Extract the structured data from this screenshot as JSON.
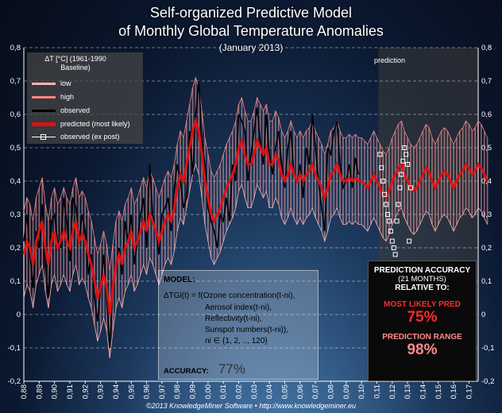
{
  "header": {
    "title_line1": "Self-organized Predictive Model",
    "title_line2": "of Monthly Global Temperature Anomalies",
    "subtitle": "(January 2013)"
  },
  "legend": {
    "heading": "ΔT [°C] (1961-1990 Baseline)",
    "items": [
      {
        "key": "low",
        "label": "low",
        "color": "#ffb3b3"
      },
      {
        "key": "high",
        "label": "high",
        "color": "#ff8585"
      },
      {
        "key": "observed",
        "label": "observed",
        "color": "#000000"
      },
      {
        "key": "predicted",
        "label": "predicted (most likely)",
        "color": "#e01010"
      },
      {
        "key": "expost",
        "label": "observed (ex post)",
        "color": "#ffffff"
      }
    ]
  },
  "prediction_region_label": "prediction",
  "model_box": {
    "heading": "MODEL:",
    "lines": [
      "ΔTGl(t) = f(Ozone concentration(t-ni),",
      "Aerosol index(t-ni),",
      "Reflectivity(t-ni),",
      "Sunspot numbers(t-ni)),",
      "ni ∈ {1, 2, .., 120}"
    ],
    "accuracy_label": "ACCURACY:",
    "accuracy_value": "77%"
  },
  "accuracy_box": {
    "title": "PREDICTION ACCURACY",
    "subtitle": "(21 MONTHS)",
    "relative": "RELATIVE TO:",
    "most_likely_label": "MOST LIKELY PRED",
    "most_likely_value": "75%",
    "range_label": "PREDICTION RANGE",
    "range_value": "98%"
  },
  "footer": "©2013 KnowledgeMiner Software  •  http://www.knowledgeminer.eu",
  "chart_data": {
    "type": "line",
    "ylim": [
      -0.2,
      0.8
    ],
    "yticks": [
      "-0,2",
      "-0,1",
      "0",
      "0,1",
      "0,2",
      "0,3",
      "0,4",
      "0,5",
      "0,6",
      "0,7",
      "0,8"
    ],
    "xlim": [
      1988,
      2017.6
    ],
    "xticks": [
      "0,88",
      "0,89",
      "0,90",
      "0,91",
      "0,92",
      "0,93",
      "0,94",
      "0,95",
      "0,96",
      "0,97",
      "0,98",
      "0,99",
      "0,00",
      "0,01",
      "0,02",
      "0,03",
      "0,04",
      "0,05",
      "0,06",
      "0,07",
      "0,08",
      "0,09",
      "0,10",
      "0,11",
      "0,12",
      "0,13",
      "0,14",
      "0,15",
      "0,16",
      "0,17"
    ],
    "prediction_start": 2011.1,
    "grid": true,
    "observed": {
      "x0": 1988.0,
      "step": 0.2,
      "values": [
        0.22,
        0.3,
        0.18,
        0.08,
        0.25,
        0.2,
        0.33,
        0.15,
        0.05,
        0.28,
        0.3,
        0.22,
        0.2,
        0.35,
        0.28,
        0.16,
        0.35,
        0.32,
        0.22,
        0.3,
        0.25,
        0.12,
        0.18,
        0.05,
        -0.02,
        0.08,
        0.18,
        0.05,
        -0.1,
        0.08,
        0.15,
        0.2,
        0.12,
        0.28,
        0.22,
        0.3,
        0.15,
        0.22,
        0.3,
        0.35,
        0.2,
        0.45,
        0.3,
        0.25,
        0.18,
        0.3,
        0.32,
        0.35,
        0.25,
        0.38,
        0.45,
        0.4,
        0.32,
        0.35,
        0.55,
        0.42,
        0.6,
        0.7,
        0.52,
        0.45,
        0.32,
        0.28,
        0.25,
        0.2,
        0.3,
        0.28,
        0.35,
        0.28,
        0.45,
        0.4,
        0.6,
        0.58,
        0.55,
        0.4,
        0.48,
        0.55,
        0.62,
        0.52,
        0.45,
        0.6,
        0.48,
        0.42,
        0.5,
        0.55,
        0.45,
        0.38,
        0.5,
        0.55,
        0.42,
        0.4,
        0.45,
        0.35,
        0.5,
        0.45,
        0.6,
        0.5,
        0.4,
        0.32,
        0.25,
        0.5,
        0.48,
        0.55,
        0.58,
        0.45,
        0.38,
        0.4,
        0.45,
        0.38,
        0.47,
        0.42
      ]
    },
    "predicted": {
      "x0": 1988.0,
      "step": 0.2,
      "values": [
        0.18,
        0.22,
        0.2,
        0.15,
        0.22,
        0.25,
        0.28,
        0.2,
        0.15,
        0.22,
        0.25,
        0.2,
        0.22,
        0.25,
        0.22,
        0.2,
        0.25,
        0.28,
        0.22,
        0.24,
        0.22,
        0.18,
        0.15,
        0.1,
        0.05,
        0.08,
        0.12,
        0.08,
        0.0,
        0.08,
        0.15,
        0.18,
        0.15,
        0.2,
        0.22,
        0.25,
        0.2,
        0.22,
        0.25,
        0.28,
        0.25,
        0.3,
        0.28,
        0.25,
        0.22,
        0.25,
        0.28,
        0.3,
        0.28,
        0.32,
        0.38,
        0.42,
        0.4,
        0.45,
        0.5,
        0.55,
        0.58,
        0.55,
        0.48,
        0.4,
        0.35,
        0.3,
        0.28,
        0.3,
        0.32,
        0.35,
        0.38,
        0.4,
        0.42,
        0.45,
        0.5,
        0.52,
        0.48,
        0.45,
        0.45,
        0.48,
        0.52,
        0.5,
        0.48,
        0.5,
        0.45,
        0.45,
        0.48,
        0.46,
        0.42,
        0.4,
        0.42,
        0.45,
        0.42,
        0.4,
        0.42,
        0.4,
        0.42,
        0.43,
        0.45,
        0.42,
        0.4,
        0.38,
        0.35,
        0.38,
        0.42,
        0.43,
        0.45,
        0.42,
        0.4,
        0.4,
        0.41,
        0.4,
        0.41,
        0.4,
        0.4,
        0.39,
        0.38,
        0.4,
        0.42,
        0.4,
        0.38,
        0.36,
        0.35,
        0.37,
        0.4,
        0.42,
        0.44,
        0.45,
        0.42,
        0.4,
        0.38,
        0.37,
        0.38,
        0.4,
        0.42,
        0.44,
        0.43,
        0.4,
        0.38,
        0.4,
        0.42,
        0.43,
        0.42,
        0.4,
        0.38,
        0.4,
        0.42,
        0.43,
        0.45,
        0.44,
        0.42,
        0.43,
        0.45,
        0.44,
        0.42,
        0.4
      ]
    },
    "band_halfwidth": 0.13,
    "observed_expost": {
      "x": [
        2011.2,
        2011.3,
        2011.4,
        2011.5,
        2011.6,
        2011.7,
        2011.8,
        2011.9,
        2012.0,
        2012.1,
        2012.2,
        2012.3,
        2012.4,
        2012.5,
        2012.6,
        2012.7,
        2012.8,
        2012.9,
        2013.0,
        2013.1,
        2013.2
      ],
      "y": [
        0.48,
        0.44,
        0.4,
        0.36,
        0.33,
        0.3,
        0.28,
        0.25,
        0.22,
        0.2,
        0.18,
        0.28,
        0.33,
        0.38,
        0.42,
        0.46,
        0.5,
        0.48,
        0.45,
        0.22,
        0.38
      ]
    }
  }
}
